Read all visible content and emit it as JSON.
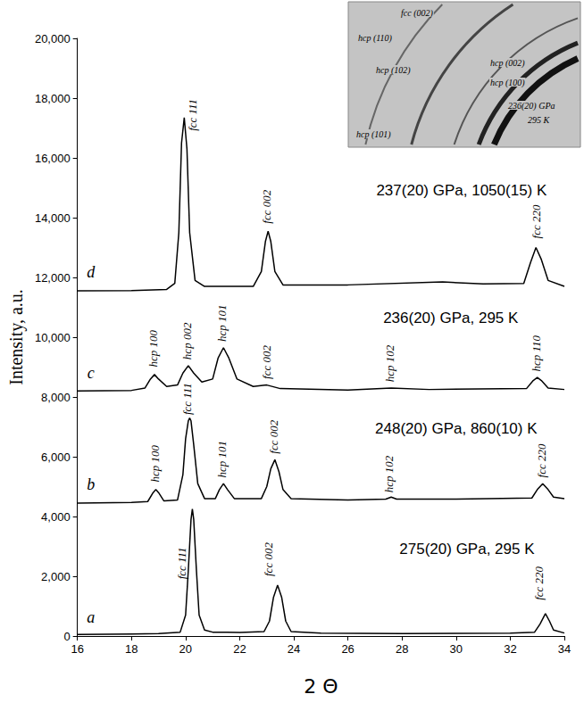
{
  "chart_data": {
    "type": "line",
    "x_label": "2 Θ",
    "y_label": "Intensity, a.u.",
    "xlim": [
      16,
      34
    ],
    "xticks": [
      16,
      18,
      20,
      22,
      24,
      26,
      28,
      30,
      32,
      34
    ],
    "ylim": [
      0,
      20000
    ],
    "yticks": [
      0,
      2000,
      4000,
      6000,
      8000,
      10000,
      12000,
      14000,
      16000,
      18000,
      20000
    ],
    "grid": false,
    "legend": false,
    "series": [
      {
        "name": "a",
        "color": "#000000",
        "name_at": [
          16.5,
          350
        ],
        "x": [
          16,
          17,
          18,
          19,
          19.8,
          20.0,
          20.1,
          20.2,
          20.25,
          20.3,
          20.4,
          20.5,
          20.7,
          21,
          22,
          22.9,
          23.1,
          23.25,
          23.4,
          23.55,
          23.7,
          23.9,
          25,
          28,
          32,
          32.9,
          33.1,
          33.3,
          33.45,
          33.6,
          34
        ],
        "values": [
          50,
          60,
          70,
          80,
          130,
          700,
          2200,
          3900,
          4250,
          3900,
          2200,
          700,
          200,
          130,
          120,
          150,
          500,
          1300,
          1700,
          1300,
          500,
          150,
          100,
          80,
          100,
          130,
          400,
          750,
          500,
          200,
          100
        ]
      },
      {
        "name": "b",
        "color": "#000000",
        "name_at": [
          16.5,
          4800
        ],
        "x": [
          16,
          18,
          18.6,
          18.8,
          18.9,
          19.0,
          19.2,
          19.7,
          19.9,
          20.0,
          20.1,
          20.15,
          20.2,
          20.3,
          20.45,
          20.7,
          21.1,
          21.25,
          21.4,
          21.55,
          21.8,
          22.8,
          23.0,
          23.15,
          23.3,
          23.45,
          23.6,
          23.9,
          26,
          27.4,
          27.6,
          27.8,
          30,
          32.8,
          33.0,
          33.2,
          33.4,
          33.6,
          34
        ],
        "values": [
          4450,
          4470,
          4500,
          4800,
          4900,
          4800,
          4520,
          4550,
          5400,
          6600,
          7200,
          7300,
          7200,
          6400,
          5100,
          4600,
          4600,
          4900,
          5100,
          4900,
          4600,
          4600,
          5000,
          5600,
          5900,
          5500,
          4900,
          4600,
          4550,
          4580,
          4650,
          4580,
          4580,
          4620,
          4900,
          5100,
          4900,
          4650,
          4600
        ]
      },
      {
        "name": "c",
        "color": "#000000",
        "name_at": [
          16.5,
          8550
        ],
        "x": [
          16,
          18,
          18.5,
          18.7,
          18.85,
          19.0,
          19.3,
          19.7,
          19.9,
          20.1,
          20.3,
          20.6,
          21.0,
          21.2,
          21.4,
          21.6,
          21.9,
          22.5,
          23.0,
          23.5,
          26,
          27.6,
          29,
          32.6,
          32.85,
          33.0,
          33.15,
          33.4,
          34
        ],
        "values": [
          8200,
          8220,
          8300,
          8600,
          8750,
          8600,
          8350,
          8400,
          8800,
          9050,
          8800,
          8500,
          8600,
          9300,
          9650,
          9300,
          8600,
          8350,
          8400,
          8280,
          8230,
          8300,
          8250,
          8280,
          8550,
          8650,
          8550,
          8300,
          8250
        ]
      },
      {
        "name": "d",
        "color": "#000000",
        "name_at": [
          16.5,
          11900
        ],
        "x": [
          16,
          18,
          19.3,
          19.6,
          19.75,
          19.85,
          19.95,
          20.05,
          20.15,
          20.35,
          20.7,
          22.5,
          22.8,
          22.95,
          23.05,
          23.15,
          23.3,
          23.6,
          26,
          29.5,
          31,
          32.5,
          32.75,
          32.95,
          33.15,
          33.4,
          34
        ],
        "values": [
          11550,
          11560,
          11600,
          11800,
          13500,
          16500,
          17350,
          16300,
          13500,
          11900,
          11700,
          11700,
          12200,
          13200,
          13550,
          13200,
          12200,
          11750,
          11750,
          11850,
          11780,
          11800,
          12500,
          13000,
          12600,
          11900,
          11700
        ]
      }
    ],
    "annotations": [
      {
        "text": "275(20) GPa, 295 K",
        "x": 30.4,
        "y": 2900
      },
      {
        "text": "248(20) GPa, 860(10) K",
        "x": 30.0,
        "y": 6950
      },
      {
        "text": "236(20) GPa, 295 K",
        "x": 29.8,
        "y": 10650
      },
      {
        "text": "237(20) GPa, 1050(15) K",
        "x": 30.2,
        "y": 14900
      }
    ],
    "peak_labels": [
      {
        "text": "fcc 111",
        "x": 19.85,
        "y": 1900
      },
      {
        "text": "fcc 002",
        "x": 23.05,
        "y": 2000
      },
      {
        "text": "fcc 220",
        "x": 33.05,
        "y": 1200
      },
      {
        "text": "hcp 100",
        "x": 18.85,
        "y": 5150
      },
      {
        "text": "fcc 111",
        "x": 20.05,
        "y": 7400
      },
      {
        "text": "hcp 101",
        "x": 21.35,
        "y": 5300
      },
      {
        "text": "fcc 002",
        "x": 23.25,
        "y": 6100
      },
      {
        "text": "hcp 102",
        "x": 27.5,
        "y": 4800
      },
      {
        "text": "fcc 220",
        "x": 33.15,
        "y": 5300
      },
      {
        "text": "hcp 100",
        "x": 18.8,
        "y": 9000
      },
      {
        "text": "hcp 002",
        "x": 20.05,
        "y": 9250
      },
      {
        "text": "hcp 101",
        "x": 21.35,
        "y": 9850
      },
      {
        "text": "fcc 002",
        "x": 23.0,
        "y": 8600
      },
      {
        "text": "hcp 102",
        "x": 27.55,
        "y": 8500
      },
      {
        "text": "hcp 110",
        "x": 32.95,
        "y": 8850
      },
      {
        "text": "fcc 111",
        "x": 20.25,
        "y": 16900
      },
      {
        "text": "fcc 002",
        "x": 23.0,
        "y": 13800
      },
      {
        "text": "fcc 220",
        "x": 32.95,
        "y": 13300
      }
    ],
    "inset": {
      "labels": [
        "fcc (002)",
        "hcp (110)",
        "hcp (102)",
        "hcp (101)",
        "hcp (002)",
        "hcp (100)",
        "236(20) GPa",
        "295 K"
      ]
    }
  }
}
